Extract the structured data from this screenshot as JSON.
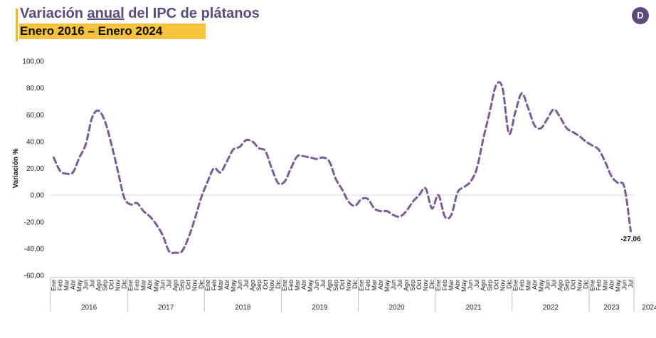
{
  "header": {
    "title_pre": "Variación ",
    "title_under": "anual",
    "title_post": " del IPC de plátanos",
    "subtitle": "Enero 2016 – Enero 2024",
    "logo_glyph": "D"
  },
  "chart_data": {
    "type": "line",
    "title": "Variación anual del IPC de plátanos",
    "subtitle": "Enero 2016 – Enero 2024",
    "ylabel": "Variación %",
    "xlabel": "",
    "ylim": [
      -60,
      100
    ],
    "yticks": [
      100,
      80,
      60,
      40,
      20,
      0,
      -20,
      -40,
      -60
    ],
    "ytick_labels": [
      "100,00",
      "80,00",
      "60,00",
      "40,00",
      "20,00",
      "0,00",
      "-20,00",
      "-40,00",
      "-60,00"
    ],
    "grid": false,
    "zero_line": true,
    "line_color": "#7a5c96",
    "line_style": "dashed",
    "month_labels": [
      "Ene",
      "Feb",
      "Mar",
      "Abr",
      "May",
      "Jun",
      "Jul",
      "Ago",
      "Sep",
      "Oct",
      "Nov",
      "Dic"
    ],
    "years": [
      "2016",
      "2017",
      "2018",
      "2019",
      "2020",
      "2021",
      "2022",
      "2023",
      "2024"
    ],
    "final_label": "-27,06",
    "series": [
      {
        "values": [
          28,
          18,
          16,
          17,
          28,
          38,
          58,
          63,
          55,
          38,
          18,
          -2,
          -7,
          -6,
          -12,
          -16,
          -22,
          -30,
          -42,
          -43,
          -42,
          -32,
          -18,
          -2,
          10,
          20,
          17,
          25,
          34,
          36,
          41,
          40,
          35,
          33,
          20,
          9,
          10,
          20,
          29,
          29,
          28,
          27,
          28,
          25,
          12,
          4,
          -5,
          -8,
          -3,
          -3,
          -10,
          -12,
          -12,
          -15,
          -16,
          -12,
          -5,
          0,
          5,
          -10,
          0,
          -16,
          -15,
          2,
          6,
          10,
          20,
          42,
          62,
          82,
          80,
          46,
          62,
          76,
          65,
          52,
          50,
          57,
          64,
          58,
          50,
          47,
          44,
          40,
          37,
          34,
          25,
          14,
          9,
          6,
          -27.06
        ]
      }
    ]
  }
}
